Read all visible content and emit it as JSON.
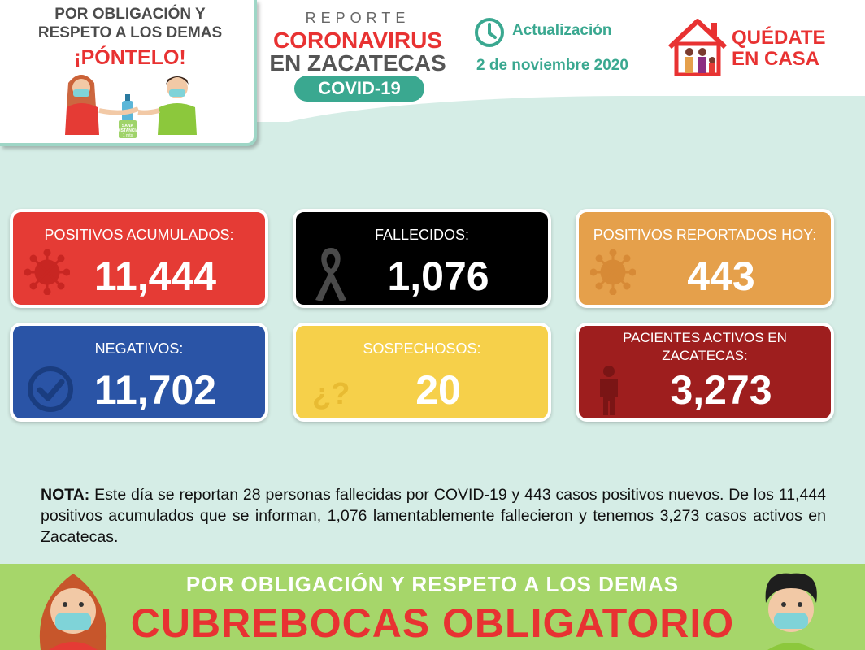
{
  "promo": {
    "line1": "POR OBLIGACIÓN Y",
    "line2": "RESPETO A LOS DEMAS",
    "line3": "¡PÓNTELO!",
    "distance_label1": "SANA",
    "distance_label2": "DISTANCIA",
    "distance_label3": "1 mts"
  },
  "report": {
    "label": "REPORTE",
    "title1": "CORONAVIRUS",
    "title2": "EN ZACATECAS",
    "pill": "COVID-19"
  },
  "update": {
    "label": "Actualización",
    "date": "2 de noviembre 2020"
  },
  "stay_home": {
    "line1": "QUÉDATE",
    "line2": "EN CASA"
  },
  "stats": [
    {
      "label": "POSITIVOS ACUMULADOS:",
      "value": "11,444",
      "color": "#e53b35",
      "icon": "virus-icon"
    },
    {
      "label": "FALLECIDOS:",
      "value": "1,076",
      "color": "#000000",
      "icon": "mourning-ribbon-icon"
    },
    {
      "label": "POSITIVOS REPORTADOS HOY:",
      "value": "443",
      "color": "#e5a04b",
      "icon": "virus-icon"
    },
    {
      "label": "NEGATIVOS:",
      "value": "11,702",
      "color": "#2a54a6",
      "icon": "check-circle-icon"
    },
    {
      "label": "SOSPECHOSOS:",
      "value": "20",
      "color": "#f6d04a",
      "icon": "question-icon"
    },
    {
      "label": "PACIENTES ACTIVOS EN ZACATECAS:",
      "value": "3,273",
      "color": "#9e1e1e",
      "icon": "person-icon"
    }
  ],
  "note": {
    "label": "NOTA:",
    "text": "Este día se reportan 28 personas fallecidas por COVID-19 y 443 casos positivos nuevos. De los 11,444 positivos acumulados que se informan, 1,076 lamentablemente fallecieron y tenemos 3,273 casos activos en Zacatecas."
  },
  "footer": {
    "line1": "POR OBLIGACIÓN Y RESPETO A LOS DEMAS",
    "line2": "CUBREBOCAS OBLIGATORIO"
  }
}
